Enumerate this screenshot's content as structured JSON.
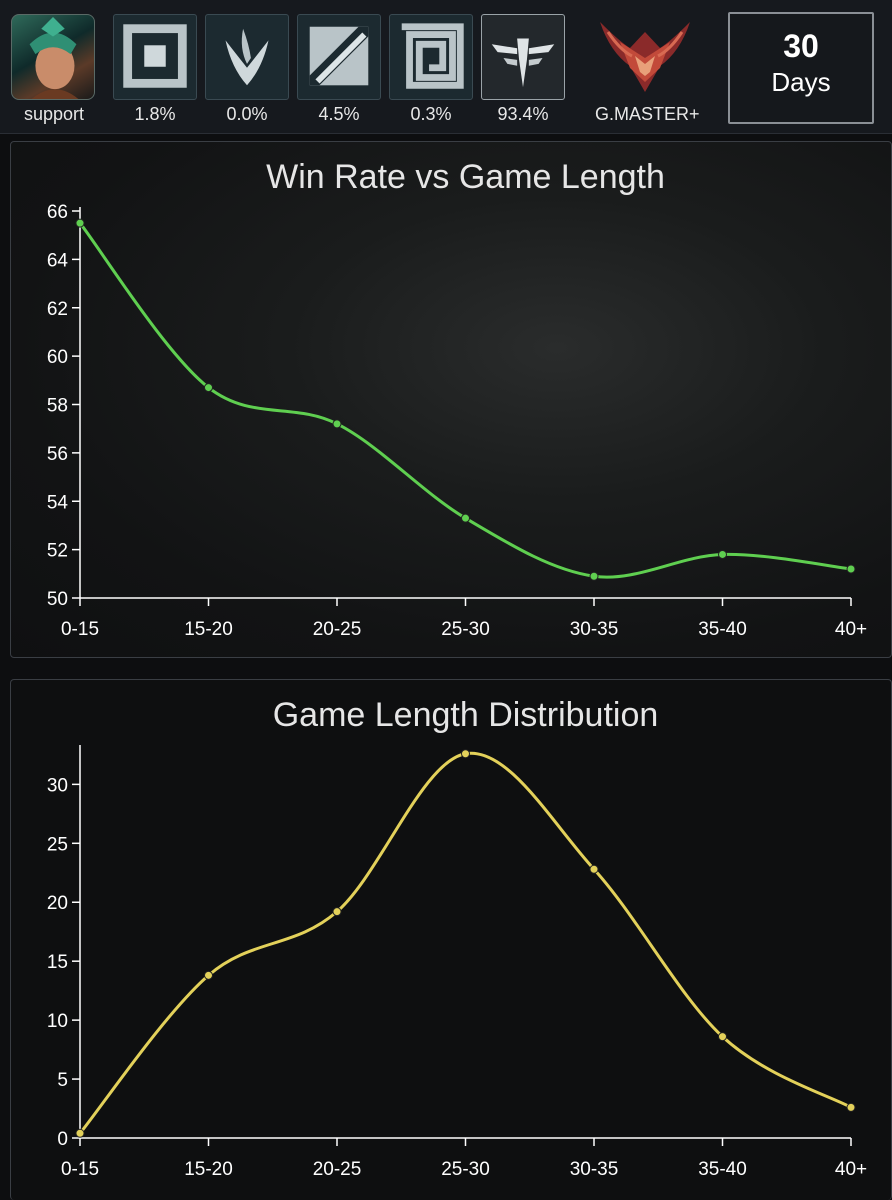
{
  "header": {
    "role_tiles": [
      {
        "label": "support",
        "icon": "champion-portrait-icon"
      },
      {
        "label": "1.8%",
        "icon": "iron-rank-icon"
      },
      {
        "label": "0.0%",
        "icon": "flame-leaf-rank-icon"
      },
      {
        "label": "4.5%",
        "icon": "diagonal-square-rank-icon"
      },
      {
        "label": "0.3%",
        "icon": "square-outline-rank-icon"
      },
      {
        "label": "93.4%",
        "icon": "winged-emblem-rank-icon"
      },
      {
        "label": "G.MASTER+",
        "icon": "grandmaster-crest-icon"
      }
    ],
    "days": {
      "number": "30",
      "unit": "Days"
    }
  },
  "colors": {
    "win_rate_line": "#5fcf50",
    "distribution_line": "#e3d15a",
    "background": "#0d0e10"
  },
  "chart_data": [
    {
      "type": "line",
      "title": "Win Rate vs Game Length",
      "categories": [
        "0-15",
        "15-20",
        "20-25",
        "25-30",
        "30-35",
        "35-40",
        "40+"
      ],
      "series": [
        {
          "values": [
            65.5,
            58.7,
            57.2,
            53.3,
            50.9,
            51.8,
            51.2
          ]
        }
      ],
      "ylim": [
        50,
        66
      ],
      "yticks": [
        50,
        52,
        54,
        56,
        58,
        60,
        62,
        64,
        66
      ],
      "grid": false,
      "smooth": true
    },
    {
      "type": "line",
      "title": "Game Length Distribution",
      "categories": [
        "0-15",
        "15-20",
        "20-25",
        "25-30",
        "30-35",
        "35-40",
        "40+"
      ],
      "series": [
        {
          "values": [
            0.4,
            13.8,
            19.2,
            32.6,
            22.8,
            8.6,
            2.6
          ]
        }
      ],
      "ylim": [
        0,
        33
      ],
      "yticks": [
        0,
        5,
        10,
        15,
        20,
        25,
        30
      ],
      "grid": false,
      "smooth": true
    }
  ]
}
